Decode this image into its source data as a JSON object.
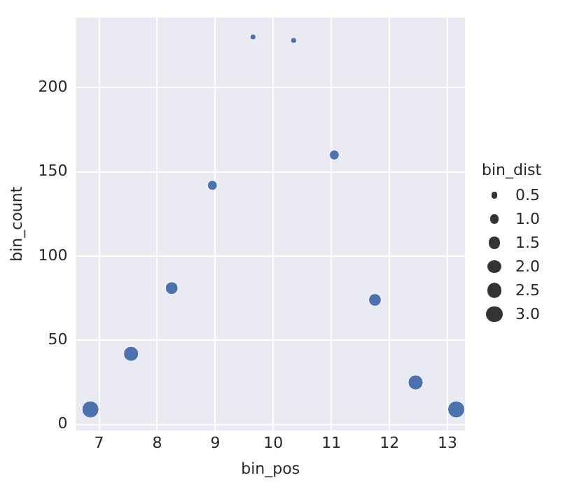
{
  "chart_data": {
    "type": "bubble",
    "xlabel": "bin_pos",
    "ylabel": "bin_count",
    "legend_title": "bin_dist",
    "x": [
      6.85,
      7.55,
      8.25,
      8.95,
      9.65,
      10.35,
      11.05,
      11.75,
      12.45,
      13.15
    ],
    "values": [
      9,
      42,
      81,
      142,
      230,
      228,
      160,
      74,
      25,
      9
    ],
    "sizes": [
      3.15,
      2.45,
      1.75,
      1.05,
      0.35,
      0.35,
      1.05,
      1.75,
      2.45,
      3.15
    ],
    "size_legend": [
      0.5,
      {
        "value": 1,
        "label": "1.0"
      },
      1.5,
      {
        "value": 2,
        "label": "2.0"
      },
      2.5,
      {
        "value": 3,
        "label": "3.0"
      }
    ],
    "color": "#4c72b0",
    "xlim": [
      6.6,
      13.3
    ],
    "xticks": [
      7,
      8,
      9,
      10,
      11,
      12,
      13
    ],
    "ylim": [
      -3.5,
      241.5
    ],
    "yticks": [
      0,
      50,
      100,
      150,
      200
    ],
    "grid": true
  }
}
